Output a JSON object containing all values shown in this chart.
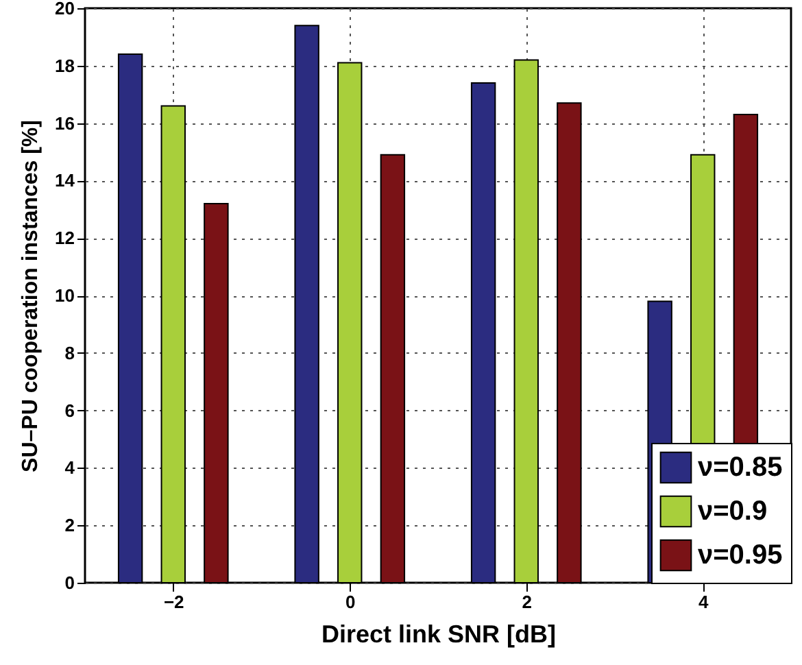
{
  "chart_data": {
    "type": "bar",
    "xlabel": "Direct link SNR [dB]",
    "ylabel": "SU–PU cooperation instances [%]",
    "categories": [
      "−2",
      "0",
      "2",
      "4"
    ],
    "series": [
      {
        "name": "ν=0.85",
        "color": "#2b2c80",
        "values": [
          18.4,
          19.4,
          17.4,
          9.8
        ]
      },
      {
        "name": "ν=0.9",
        "color": "#a8cf3b",
        "values": [
          16.6,
          18.1,
          18.2,
          14.9
        ]
      },
      {
        "name": "ν=0.95",
        "color": "#7a1216",
        "values": [
          13.2,
          14.9,
          16.7,
          16.3
        ]
      }
    ],
    "ylim": [
      0,
      20
    ],
    "yticks": [
      0,
      2,
      4,
      6,
      8,
      10,
      12,
      14,
      16,
      18,
      20
    ],
    "grid": true,
    "legend": "bottom right"
  }
}
